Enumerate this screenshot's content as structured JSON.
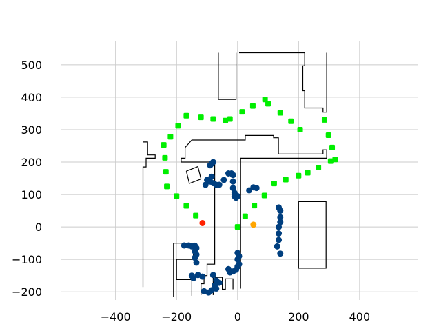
{
  "chart_data": {
    "type": "scatter",
    "title": "",
    "xlabel": "",
    "ylabel": "",
    "xlim": [
      -580,
      590
    ],
    "ylim": [
      -225,
      572
    ],
    "grid": true,
    "x_ticks": [
      -400,
      -200,
      0,
      200,
      400
    ],
    "y_ticks": [
      -200,
      -100,
      0,
      100,
      200,
      300,
      400,
      500
    ],
    "x_tick_labels": [
      "−400",
      "−200",
      "0",
      "200",
      "400"
    ],
    "y_tick_labels": [
      "−200",
      "−100",
      "0",
      "100",
      "200",
      "300",
      "400",
      "500"
    ],
    "colors": {
      "background": "#ffffff",
      "grid": "#cbcbcb",
      "walls": "#000000",
      "path_points": "#00ee00",
      "scan_points": "#003f7f",
      "robot_marker": "#ff2200",
      "target_marker": "#ffa500"
    },
    "walls": [
      [
        [
          -63,
          537
        ],
        [
          -63,
          393
        ],
        [
          -5,
          393
        ],
        [
          -5,
          537
        ]
      ],
      [
        [
          5,
          537
        ],
        [
          220,
          537
        ],
        [
          220,
          497
        ],
        [
          214,
          497
        ],
        [
          214,
          420
        ],
        [
          220,
          420
        ],
        [
          220,
          367
        ],
        [
          280,
          367
        ],
        [
          280,
          354
        ],
        [
          292,
          354
        ],
        [
          292,
          537
        ]
      ],
      [
        [
          -310,
          262
        ],
        [
          -295,
          262
        ],
        [
          -295,
          222
        ],
        [
          -270,
          222
        ],
        [
          -270,
          212
        ],
        [
          -300,
          212
        ],
        [
          -300,
          185
        ],
        [
          -310,
          185
        ],
        [
          -310,
          -185
        ]
      ],
      [
        [
          -185,
          212
        ],
        [
          -185,
          200
        ],
        [
          -75,
          200
        ],
        [
          -75,
          -115
        ],
        [
          -100,
          -115
        ],
        [
          -100,
          -150
        ],
        [
          -110,
          -150
        ],
        [
          -110,
          -175
        ],
        [
          -120,
          -175
        ],
        [
          -120,
          -210
        ]
      ],
      [
        [
          -185,
          212
        ],
        [
          -172,
          212
        ],
        [
          -172,
          245
        ],
        [
          -150,
          268
        ],
        [
          25,
          268
        ],
        [
          25,
          282
        ],
        [
          118,
          282
        ],
        [
          118,
          275
        ],
        [
          134,
          275
        ],
        [
          134,
          225
        ],
        [
          280,
          225
        ],
        [
          280,
          238
        ],
        [
          292,
          238
        ],
        [
          292,
          212
        ]
      ],
      [
        [
          292,
          212
        ],
        [
          10,
          212
        ],
        [
          10,
          -190
        ]
      ],
      [
        [
          -210,
          -215
        ],
        [
          -210,
          -50
        ],
        [
          -145,
          -50
        ],
        [
          -145,
          -100
        ],
        [
          -200,
          -100
        ],
        [
          -200,
          -162
        ],
        [
          -150,
          -162
        ],
        [
          -150,
          -212
        ]
      ],
      [
        [
          -80,
          -210
        ],
        [
          -80,
          -155
        ],
        [
          -50,
          -155
        ],
        [
          -50,
          -192
        ],
        [
          -40,
          -192
        ],
        [
          -40,
          -160
        ],
        [
          -15,
          -160
        ],
        [
          -15,
          -192
        ]
      ],
      [
        [
          200,
          78
        ],
        [
          290,
          78
        ],
        [
          290,
          -127
        ],
        [
          200,
          -127
        ],
        [
          200,
          78
        ]
      ],
      [
        [
          -168,
          172
        ],
        [
          -130,
          186
        ],
        [
          -120,
          148
        ],
        [
          -158,
          134
        ],
        [
          -168,
          172
        ]
      ]
    ],
    "series": [
      {
        "marker": "square",
        "color": "#00ee00",
        "points": [
          [
            -168,
            343
          ],
          [
            -120,
            338
          ],
          [
            -80,
            333
          ],
          [
            -40,
            328
          ],
          [
            -25,
            333
          ],
          [
            15,
            355
          ],
          [
            50,
            373
          ],
          [
            90,
            393
          ],
          [
            100,
            380
          ],
          [
            140,
            352
          ],
          [
            175,
            326
          ],
          [
            205,
            300
          ],
          [
            285,
            330
          ],
          [
            298,
            283
          ],
          [
            310,
            245
          ],
          [
            320,
            208
          ],
          [
            305,
            203
          ],
          [
            265,
            183
          ],
          [
            230,
            167
          ],
          [
            200,
            158
          ],
          [
            158,
            146
          ],
          [
            120,
            134
          ],
          [
            88,
            97
          ],
          [
            55,
            66
          ],
          [
            25,
            33
          ],
          [
            0,
            0
          ],
          [
            -242,
            253
          ],
          [
            -220,
            278
          ],
          [
            -195,
            312
          ],
          [
            -238,
            213
          ],
          [
            -235,
            170
          ],
          [
            -232,
            125
          ],
          [
            -200,
            95
          ],
          [
            -168,
            65
          ],
          [
            -137,
            35
          ]
        ]
      },
      {
        "marker": "circle",
        "color": "#003f7f",
        "points": [
          [
            -85,
            195
          ],
          [
            -80,
            200
          ],
          [
            -90,
            190
          ],
          [
            -85,
            155
          ],
          [
            -90,
            140
          ],
          [
            -80,
            135
          ],
          [
            -70,
            130
          ],
          [
            -60,
            130
          ],
          [
            -100,
            145
          ],
          [
            -105,
            130
          ],
          [
            -45,
            145
          ],
          [
            -30,
            165
          ],
          [
            -20,
            165
          ],
          [
            -15,
            160
          ],
          [
            -15,
            140
          ],
          [
            -15,
            120
          ],
          [
            -10,
            105
          ],
          [
            -10,
            95
          ],
          [
            -5,
            90
          ],
          [
            0,
            95
          ],
          [
            38,
            113
          ],
          [
            52,
            122
          ],
          [
            62,
            120
          ],
          [
            135,
            60
          ],
          [
            140,
            50
          ],
          [
            140,
            30
          ],
          [
            140,
            15
          ],
          [
            135,
            0
          ],
          [
            135,
            -20
          ],
          [
            135,
            -40
          ],
          [
            130,
            -60
          ],
          [
            140,
            -82
          ],
          [
            -175,
            -57
          ],
          [
            -160,
            -57
          ],
          [
            -150,
            -60
          ],
          [
            -140,
            -58
          ],
          [
            -135,
            -65
          ],
          [
            -140,
            -75
          ],
          [
            -135,
            -85
          ],
          [
            -140,
            -95
          ],
          [
            -135,
            -110
          ],
          [
            -150,
            -150
          ],
          [
            -145,
            -158
          ],
          [
            -130,
            -148
          ],
          [
            -115,
            -153
          ],
          [
            -110,
            -198
          ],
          [
            -95,
            -202
          ],
          [
            -85,
            -195
          ],
          [
            -80,
            -148
          ],
          [
            -70,
            -165
          ],
          [
            -60,
            -172
          ],
          [
            -75,
            -180
          ],
          [
            -70,
            -190
          ],
          [
            -30,
            -130
          ],
          [
            -25,
            -140
          ],
          [
            -15,
            -137
          ],
          [
            -5,
            -132
          ],
          [
            0,
            -122
          ],
          [
            5,
            -115
          ],
          [
            0,
            -100
          ],
          [
            5,
            -90
          ],
          [
            0,
            -80
          ]
        ]
      },
      {
        "marker": "circle",
        "color": "#ff2200",
        "points": [
          [
            -115,
            12
          ]
        ]
      },
      {
        "marker": "circle",
        "color": "#ffa500",
        "points": [
          [
            52,
            7
          ]
        ]
      }
    ]
  }
}
